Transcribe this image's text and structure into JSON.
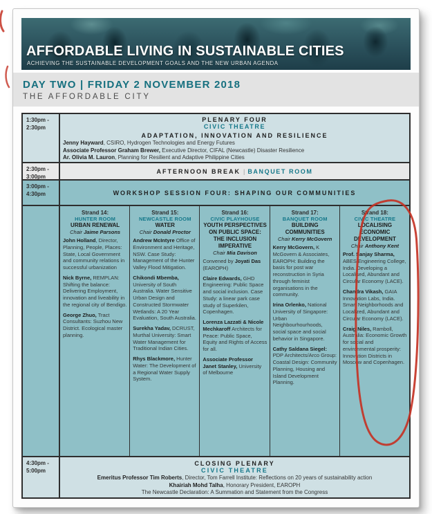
{
  "banner": {
    "title": "AFFORDABLE LIVING IN SUSTAINABLE CITIES",
    "subtitle": "ACHIEVING THE SUSTAINABLE DEVELOPMENT GOALS AND THE NEW URBAN AGENDA"
  },
  "day_header": {
    "title": "DAY TWO | FRIDAY 2 NOVEMBER 2018",
    "subtitle": "THE AFFORDABLE CITY"
  },
  "colors": {
    "accent_teal": "#15788a",
    "row_light_blue": "#cfe0e4",
    "row_teal": "#8fc0c7",
    "row_gray": "#e9e9e9",
    "annotation_red": "#c43325"
  },
  "schedule": {
    "plenary_four": {
      "time1": "1:30pm -",
      "time2": "2:30pm",
      "title": "PLENARY FOUR",
      "venue": "CIVIC THEATRE",
      "subtitle": "ADAPTATION, INNOVATION AND RESILIENCE",
      "speakers": [
        {
          "bold": "Jenny Hayward",
          "rest": ", CSIRO,  Hydrogen Technologies and Energy Futures"
        },
        {
          "bold": "Associate Professor Graham Brewer,",
          "rest": " Executive Director, CIFAL (Newcastle) Disaster Resilience"
        },
        {
          "bold": "Ar. Olivia M. Lauron",
          "rest": ", Planning for Resilient and Adaptive Philippine Cities"
        }
      ]
    },
    "afternoon_break": {
      "time1": "2:30pm -",
      "time2": "3:00pm",
      "title": "AFTERNOON BREAK",
      "separator": "|",
      "venue": "BANQUET ROOM"
    },
    "workshop": {
      "time1": "3:00pm -",
      "time2": "4:30pm",
      "title": "WORKSHOP SESSION FOUR: SHAPING OUR COMMUNITIES"
    },
    "strands": [
      {
        "label": "Strand 14:",
        "room": "HUNTER ROOM",
        "title": "URBAN RENEWAL",
        "chair_prefix": "Chair",
        "chair": "Jaime Parsons",
        "entries": [
          {
            "pre": "",
            "bold": "John Holland",
            "rest": ", Director, Planning, People, Places: State, Local Government and community relations in successful urbanization"
          },
          {
            "pre": "",
            "bold": "Nick Byrne,",
            "rest": " REMPLAN:  Shifting the balance: Delivering Employment, innovation and liveability in the regional city of Bendigo."
          },
          {
            "pre": "",
            "bold": "George Zhuo,",
            "rest": " Tract Consultants: Suzhou New District. Ecological master planning."
          }
        ]
      },
      {
        "label": "Strand 15:",
        "room": "NEWCASTLE ROOM",
        "title": "WATER",
        "chair_prefix": "Chair",
        "chair": "Donald Proctor",
        "entries": [
          {
            "pre": "",
            "bold": "Andrew McIntyre",
            "rest": " Office of Environment and Heritage, NSW. Case Study: Management of the Hunter Valley Flood Mitigation."
          },
          {
            "pre": "",
            "bold": "Chikondi Mbemba,",
            "rest": " University of South Australia. Water Sensitive Urban Design and Constructed Stormwater Wetlands: A 20 Year Evaluation, South Australia."
          },
          {
            "pre": "",
            "bold": "Surekha Yadav,",
            "rest": " DCRUST, Murthal University: Smart Water Management for Traditional Indian Cities."
          },
          {
            "pre": "",
            "bold": "Rhys Blackmore,",
            "rest": " Hunter Water: The Development of a Regional Water Supply System."
          }
        ]
      },
      {
        "label": "Strand 16:",
        "room": "CIVIC PLAYHOUSE",
        "title": "YOUTH PERSPECTIVES ON PUBLIC SPACE: THE INCLUSION IMPERATIVE",
        "chair_prefix": "Chair",
        "chair": "Mia Davison",
        "entries": [
          {
            "pre": "Convened by ",
            "bold": "Joyati Das",
            "rest": " (EAROPH)"
          },
          {
            "pre": "",
            "bold": "Claire Edwards,",
            "rest": " GHD Engineering: Public Space and social inclusion. Case Study: a linear park case study of Superkilen, Copenhagen."
          },
          {
            "pre": "",
            "bold": "Lorenza Lazzati & Nicole Mechkaroff",
            "rest": " Architects for Peace: Public Space, Equity and Rights of Access for all."
          },
          {
            "pre": "",
            "bold": "Associate Professor Janet Stanley,",
            "rest": " University of Melbourne"
          }
        ]
      },
      {
        "label": "Strand 17:",
        "room": "BANQUET ROOM",
        "title": "BUILDING COMMUNITIES",
        "chair_prefix": "Chair",
        "chair": "Kerry McGovern",
        "entries": [
          {
            "pre": "",
            "bold": "Kerry McGovern,",
            "rest": " K McGovern & Associates, EAROPH: Building the basis for post war reconstruction in Syria through feminist organisations in the community."
          },
          {
            "pre": "",
            "bold": "Irina Orlenko,",
            "rest": " National University of Singapore: Urban Neighbourhourhoods, social space and social behavior in Singapore."
          },
          {
            "pre": "",
            "bold": "Cathy Saldana Siegel:",
            "rest": " PDP Architects/Arco Group: Coastal Design: Community Planning, Housing and Island Development Planning."
          }
        ]
      },
      {
        "label": "Strand 18:",
        "room": "CIVIC THEATRE",
        "title": "LOCALISING ECONOMIC DEVELOPMENT",
        "chair_prefix": "Chair",
        "chair": "Anthony Kent",
        "entries": [
          {
            "pre": "",
            "bold": "Prof. Sanjay Sharma,",
            "rest": " ABES Engineering College, India. Developing a Localised, Abundant and Circular Economy (LACE)."
          },
          {
            "pre": "",
            "bold": "Chandra Vikash,",
            "rest": " GAIA Innovation Labs, India. Smart Neighborhoods and Localized, Abundant and Circular Economy (LACE)."
          },
          {
            "pre": "",
            "bold": "Craig Niles,",
            "rest": " Ramboll, Australia: Economic Growth for social and environmental prosperity: Innovation Districts in Moscow and Copenhagen."
          }
        ]
      }
    ],
    "closing": {
      "time1": "4:30pm -",
      "time2": "5:00pm",
      "title": "CLOSING PLENARY",
      "venue": "CIVIC THEATRE",
      "lines": [
        {
          "bold": "Emeritus Professor Tim Roberts",
          "rest": ", Director, Tom Farrell Institute: Reflections on 20 years of sustainability action"
        },
        {
          "bold": "Khairiah Mohd Talha",
          "rest": ", Honorary President, EAROPH"
        },
        {
          "bold": "",
          "rest": "The Newcastle Declaration: A Summation and Statement from the Congress"
        }
      ]
    }
  }
}
